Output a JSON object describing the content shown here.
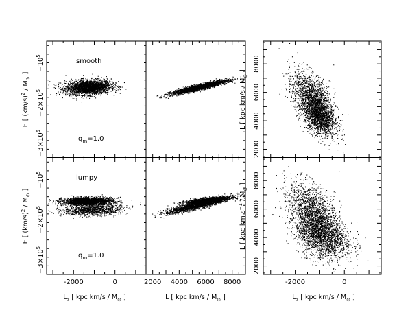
{
  "chart_data": [
    {
      "type": "scatter",
      "panel_id": "top-left",
      "panel_label": "smooth",
      "annotation": "q_m=1.0",
      "x_quantity": "L_z",
      "y_quantity": "E",
      "xlim": [
        -3300,
        1500
      ],
      "ylim": [
        -350000,
        -80000
      ],
      "clouds": [
        {
          "cx": -1300,
          "cy": -186000,
          "sx": 550,
          "sy": 8500,
          "rho": 0.15,
          "n": 2600
        }
      ]
    },
    {
      "type": "scatter",
      "panel_id": "top-middle",
      "panel_label": "",
      "x_quantity": "L",
      "y_quantity": "E",
      "xlim": [
        1500,
        9000
      ],
      "ylim": [
        -350000,
        -80000
      ],
      "clouds": [
        {
          "cx": 5500,
          "cy": -186000,
          "sx": 1050,
          "sy": 8200,
          "rho": 0.92,
          "n": 2600
        }
      ]
    },
    {
      "type": "scatter",
      "panel_id": "top-right",
      "panel_label": "",
      "x_quantity": "L_z",
      "y_quantity": "L",
      "xlim": [
        -3300,
        1500
      ],
      "ylim": [
        1400,
        9600
      ],
      "clouds": [
        {
          "cx": -1250,
          "cy": 5300,
          "sx": 420,
          "sy": 1050,
          "rho": -0.55,
          "n": 2200
        },
        {
          "cx": -1000,
          "cy": 4200,
          "sx": 300,
          "sy": 600,
          "rho": -0.3,
          "n": 900
        }
      ]
    },
    {
      "type": "scatter",
      "panel_id": "bottom-left",
      "panel_label": "lumpy",
      "annotation": "q_m=1.0",
      "x_quantity": "L_z",
      "y_quantity": "E",
      "xlim": [
        -3300,
        1500
      ],
      "ylim": [
        -350000,
        -80000
      ],
      "clouds": [
        {
          "cx": -1350,
          "cy": -180000,
          "sx": 600,
          "sy": 4500,
          "rho": 0.1,
          "n": 2400
        },
        {
          "cx": -1100,
          "cy": -200000,
          "sx": 700,
          "sy": 6500,
          "rho": 0.2,
          "n": 1100
        }
      ]
    },
    {
      "type": "scatter",
      "panel_id": "bottom-middle",
      "panel_label": "",
      "x_quantity": "L",
      "y_quantity": "E",
      "xlim": [
        1500,
        9000
      ],
      "ylim": [
        -350000,
        -80000
      ],
      "clouds": [
        {
          "cx": 5500,
          "cy": -188000,
          "sx": 1200,
          "sy": 9500,
          "rho": 0.9,
          "n": 2200
        },
        {
          "cx": 6000,
          "cy": -178000,
          "sx": 800,
          "sy": 4000,
          "rho": 0.7,
          "n": 1300
        }
      ]
    },
    {
      "type": "scatter",
      "panel_id": "bottom-right",
      "panel_label": "",
      "x_quantity": "L_z",
      "y_quantity": "L",
      "xlim": [
        -3300,
        1500
      ],
      "ylim": [
        1400,
        9600
      ],
      "clouds": [
        {
          "cx": -1200,
          "cy": 5200,
          "sx": 520,
          "sy": 1250,
          "rho": -0.5,
          "n": 2600
        },
        {
          "cx": -800,
          "cy": 4000,
          "sx": 550,
          "sy": 700,
          "rho": -0.2,
          "n": 900
        }
      ]
    }
  ],
  "ticks": {
    "lz_x": [
      "-2000",
      "0"
    ],
    "l_x": [
      "2000",
      "4000",
      "6000",
      "8000"
    ],
    "l_y": [
      "2000",
      "4000",
      "6000",
      "8000"
    ]
  }
}
